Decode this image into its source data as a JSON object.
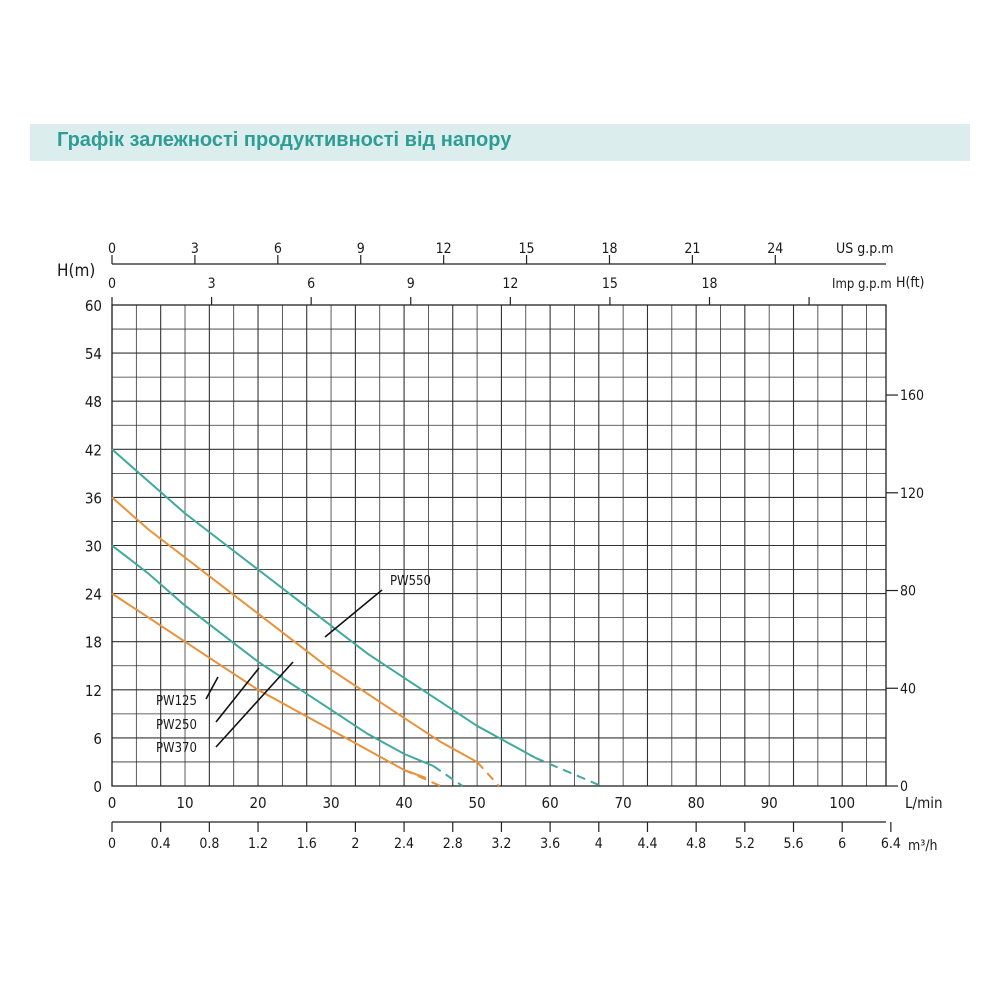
{
  "page": {
    "title": "Графік залежності продуктивності від напору"
  },
  "chart_data": {
    "type": "line",
    "y_label": "H(m)",
    "y_ticks": [
      "0",
      "6",
      "12",
      "18",
      "24",
      "30",
      "36",
      "42",
      "48",
      "54",
      "60"
    ],
    "y_range": [
      0,
      60
    ],
    "y_right_label": "H(ft)",
    "y_right_ticks": [
      "0",
      "40",
      "80",
      "120",
      "160"
    ],
    "x_label": "L/min",
    "x_ticks": [
      "0",
      "10",
      "20",
      "30",
      "40",
      "50",
      "60",
      "70",
      "80",
      "90",
      "100"
    ],
    "x_range": [
      0,
      106
    ],
    "x_m3h_label": "m³/h",
    "x_m3h_ticks": [
      "0",
      "0.4",
      "0.8",
      "1.2",
      "1.6",
      "2",
      "2.4",
      "2.8",
      "3.2",
      "3.6",
      "4",
      "4.4",
      "4.8",
      "5.2",
      "5.6",
      "6",
      "6.4"
    ],
    "x_usgpm_label": "US g.p.m",
    "x_usgpm_ticks": [
      "0",
      "3",
      "6",
      "9",
      "12",
      "15",
      "18",
      "21",
      "24"
    ],
    "x_impgpm_label": "Imp g.p.m",
    "x_impgpm_ticks": [
      "0",
      "3",
      "6",
      "9",
      "12",
      "15",
      "18"
    ],
    "grid": true,
    "colors": {
      "teal": "#3fa99d",
      "orange": "#e8923a"
    },
    "series": [
      {
        "name": "PW125",
        "color": "#e8923a",
        "x": [
          0,
          5,
          10,
          15,
          20,
          25,
          30,
          35,
          40,
          43
        ],
        "y": [
          24,
          21,
          18,
          15,
          12,
          9.5,
          7,
          4.5,
          2,
          1
        ],
        "dashed_x": [
          40,
          45
        ],
        "dashed_y": [
          2,
          0
        ]
      },
      {
        "name": "PW250",
        "color": "#3fa99d",
        "x": [
          0,
          5,
          10,
          15,
          20,
          25,
          30,
          35,
          40,
          44
        ],
        "y": [
          30,
          26.5,
          22.5,
          19,
          15.5,
          12.5,
          9.5,
          6.5,
          4,
          2.5
        ],
        "dashed_x": [
          44,
          48
        ],
        "dashed_y": [
          2.5,
          0
        ]
      },
      {
        "name": "PW370",
        "color": "#e8923a",
        "x": [
          0,
          5,
          10,
          15,
          20,
          25,
          30,
          35,
          40,
          45,
          50
        ],
        "y": [
          36,
          32,
          28.5,
          25,
          21.5,
          18,
          14.5,
          11.5,
          8.5,
          5.5,
          3
        ],
        "dashed_x": [
          50,
          53
        ],
        "dashed_y": [
          3,
          0
        ]
      },
      {
        "name": "PW550",
        "color": "#3fa99d",
        "x": [
          0,
          5,
          10,
          15,
          20,
          25,
          30,
          35,
          40,
          45,
          50,
          55,
          58
        ],
        "y": [
          42,
          38,
          34,
          30.5,
          27,
          23.5,
          20,
          16.5,
          13.5,
          10.5,
          7.5,
          5,
          3.5
        ],
        "dashed_x": [
          58,
          67
        ],
        "dashed_y": [
          3.5,
          0
        ]
      }
    ]
  }
}
